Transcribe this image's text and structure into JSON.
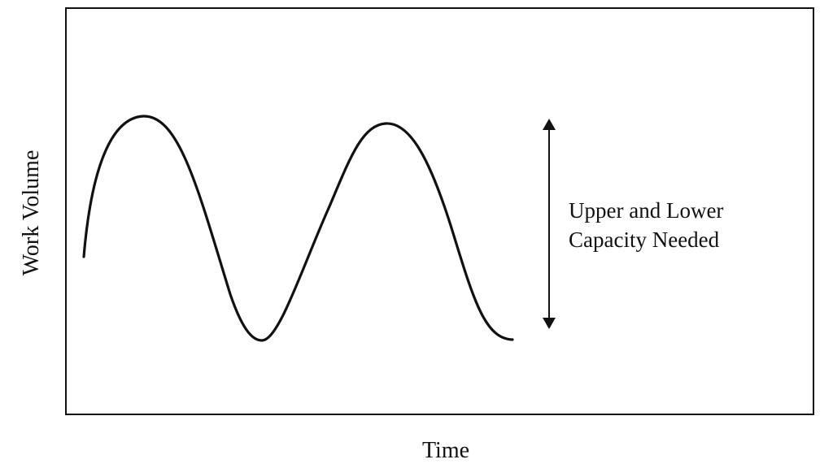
{
  "chart_data": {
    "type": "line",
    "title": "",
    "xlabel": "Time",
    "ylabel": "Work Volume",
    "grid": false,
    "legend": "none",
    "curve": "sine",
    "series": [
      {
        "values_description": "two full oscillations of a smooth wave"
      }
    ],
    "annotation": {
      "lines": [
        "Upper and Lower",
        "Capacity Needed"
      ],
      "arrow": "double-headed vertical",
      "color": "#111111"
    }
  }
}
